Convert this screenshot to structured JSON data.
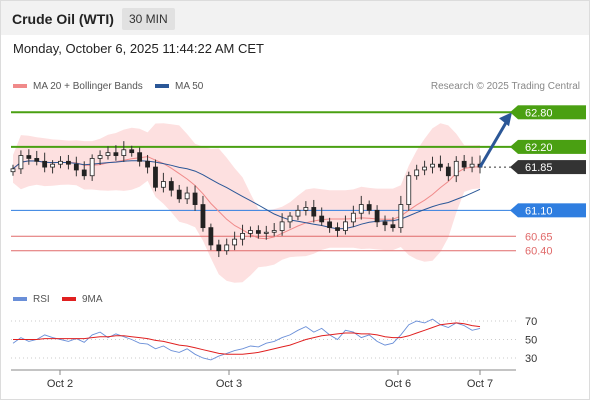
{
  "header": {
    "title": "Crude Oil (WTI)",
    "timeframe": "30 MIN",
    "timestamp": "Monday, October 6, 2025 11:44:22 AM CET"
  },
  "legend": {
    "main": [
      {
        "label": "MA 20 + Bollinger Bands",
        "color": "#f08a8a"
      },
      {
        "label": "MA 50",
        "color": "#2b5797"
      }
    ],
    "rsi": [
      {
        "label": "RSI",
        "color": "#6a8fd8"
      },
      {
        "label": "9MA",
        "color": "#e02020"
      }
    ],
    "copyright": "Research © 2025 Trading Central"
  },
  "chart_data": [
    {
      "type": "candlestick",
      "panel": "price",
      "x_ticks": [
        "Oct 2",
        "Oct 3",
        "Oct 6",
        "Oct 7"
      ],
      "ylim": [
        60.1,
        63.1
      ],
      "price_levels": [
        {
          "label": "62.80",
          "value": 62.8,
          "role": "target",
          "color": "#4aa012"
        },
        {
          "label": "62.20",
          "value": 62.2,
          "role": "target",
          "color": "#4aa012"
        },
        {
          "label": "61.85",
          "value": 61.85,
          "role": "last price",
          "color": "#333333"
        },
        {
          "label": "61.10",
          "value": 61.1,
          "role": "pivot",
          "color": "#2f7ee0"
        },
        {
          "label": "60.65",
          "value": 60.65,
          "role": "support",
          "color": "#e06a6a"
        },
        {
          "label": "60.40",
          "value": 60.4,
          "role": "support",
          "color": "#e06a6a"
        }
      ],
      "close_series": [
        61.82,
        62.05,
        62.0,
        61.95,
        61.85,
        61.9,
        61.95,
        61.9,
        61.8,
        61.7,
        62.0,
        62.05,
        62.1,
        62.05,
        62.15,
        62.1,
        61.95,
        61.85,
        61.5,
        61.6,
        61.45,
        61.3,
        61.4,
        61.2,
        60.8,
        60.5,
        60.4,
        60.5,
        60.6,
        60.7,
        60.75,
        60.7,
        60.72,
        60.75,
        60.9,
        61.0,
        61.1,
        61.15,
        61.0,
        60.9,
        60.8,
        60.75,
        60.9,
        61.05,
        61.2,
        61.1,
        60.9,
        60.85,
        60.8,
        61.2,
        61.7,
        61.8,
        61.85,
        61.9,
        61.85,
        61.7,
        61.95,
        61.85,
        61.9,
        61.85
      ],
      "arrow": {
        "from": 61.85,
        "to": 62.8
      }
    },
    {
      "type": "line",
      "panel": "rsi",
      "ylim": [
        20,
        80
      ],
      "y_ticks": [
        "70",
        "50",
        "30"
      ],
      "series": [
        {
          "name": "RSI",
          "values": [
            46,
            52,
            48,
            50,
            55,
            52,
            50,
            48,
            51,
            47,
            55,
            58,
            52,
            56,
            53,
            50,
            46,
            45,
            40,
            43,
            38,
            36,
            40,
            34,
            30,
            28,
            32,
            35,
            38,
            40,
            43,
            42,
            46,
            48,
            52,
            55,
            60,
            64,
            58,
            62,
            55,
            50,
            60,
            58,
            52,
            55,
            48,
            44,
            46,
            55,
            66,
            70,
            68,
            72,
            66,
            63,
            68,
            65,
            60,
            62
          ]
        },
        {
          "name": "9MA",
          "values": [
            50,
            50,
            50,
            50,
            51,
            51,
            51,
            51,
            51,
            51,
            52,
            53,
            53,
            54,
            54,
            53,
            52,
            51,
            49,
            48,
            46,
            44,
            43,
            41,
            39,
            37,
            35,
            34,
            34,
            34,
            35,
            36,
            38,
            40,
            42,
            44,
            47,
            50,
            52,
            54,
            55,
            56,
            57,
            57,
            56,
            56,
            55,
            53,
            52,
            52,
            54,
            57,
            60,
            63,
            66,
            67,
            68,
            67,
            65,
            64
          ]
        }
      ]
    }
  ]
}
